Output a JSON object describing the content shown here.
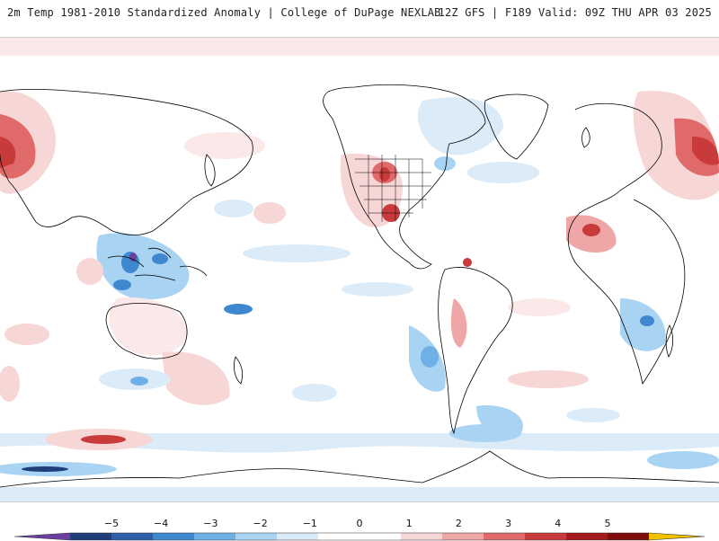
{
  "header": {
    "title_left": "2m Temp 1981-2010 Standardized Anomaly | College of DuPage NEXLAB",
    "title_right": "12Z GFS | F189 Valid: 09Z THU APR 03 2025"
  },
  "colorbar": {
    "labels": [
      "−5",
      "−4",
      "−3",
      "−2",
      "−1",
      "0",
      "1",
      "2",
      "3",
      "4",
      "5"
    ],
    "min_color": "#6a3fa0",
    "max_color": "#f2c200",
    "segment_colors": [
      "#1f3d7a",
      "#2c5fa8",
      "#3f88d0",
      "#6fb0e6",
      "#a8d3f2",
      "#dcebf8",
      "#ffffff",
      "#ffffff",
      "#f7d6d6",
      "#efa6a6",
      "#e06a6a",
      "#c93a3a",
      "#a51a1a",
      "#7e0c0c"
    ]
  },
  "map": {
    "colors": {
      "ocean": "#ffffff",
      "land_border": "#000000",
      "cold_light": "#dcebf8",
      "cold_mid": "#a8d3f2",
      "cold_strong": "#3f88d0",
      "cold_extreme": "#1f3d7a",
      "warm_light": "#f7d6d6",
      "warm_mid": "#efa6a6",
      "warm_strong": "#c93a3a",
      "warm_extreme": "#8e0f0f"
    }
  }
}
